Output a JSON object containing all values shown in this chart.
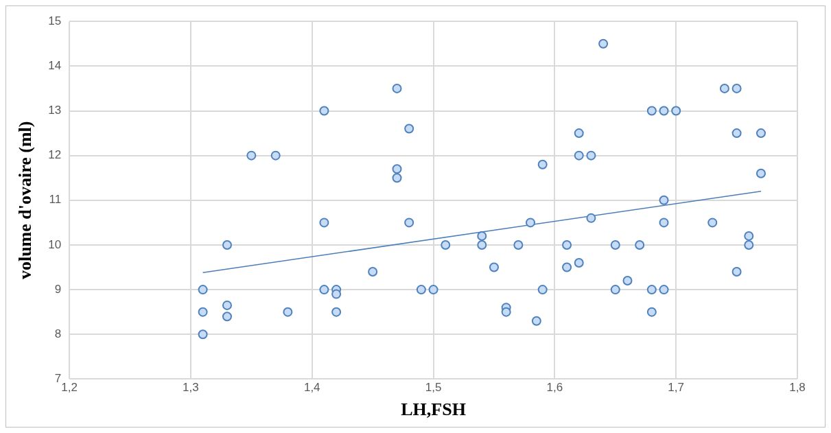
{
  "chart_data": {
    "type": "scatter",
    "xlabel": "LH,FSH",
    "ylabel": "volume d'ovaire (ml)",
    "xlim": [
      1.2,
      1.8
    ],
    "xticks": [
      {
        "value": 1.2,
        "label": "1,2"
      },
      {
        "value": 1.3,
        "label": "1,3"
      },
      {
        "value": 1.4,
        "label": "1,4"
      },
      {
        "value": 1.5,
        "label": "1,5"
      },
      {
        "value": 1.6,
        "label": "1,6"
      },
      {
        "value": 1.7,
        "label": "1,7"
      },
      {
        "value": 1.8,
        "label": "1,8"
      }
    ],
    "ylim": [
      7,
      15
    ],
    "yticks": [
      7,
      8,
      9,
      10,
      11,
      12,
      13,
      14,
      15
    ],
    "grid": true,
    "legend": false,
    "marker": "circle",
    "series": [
      {
        "type": "scatter",
        "color": "#4f81bd",
        "x": [
          1.31,
          1.31,
          1.31,
          1.33,
          1.33,
          1.33,
          1.35,
          1.37,
          1.38,
          1.41,
          1.41,
          1.41,
          1.42,
          1.42,
          1.42,
          1.45,
          1.47,
          1.47,
          1.47,
          1.48,
          1.48,
          1.49,
          1.5,
          1.51,
          1.54,
          1.54,
          1.55,
          1.56,
          1.56,
          1.57,
          1.58,
          1.585,
          1.59,
          1.59,
          1.61,
          1.61,
          1.62,
          1.62,
          1.62,
          1.63,
          1.63,
          1.64,
          1.65,
          1.65,
          1.66,
          1.67,
          1.68,
          1.68,
          1.68,
          1.69,
          1.69,
          1.69,
          1.69,
          1.7,
          1.73,
          1.74,
          1.75,
          1.75,
          1.75,
          1.76,
          1.76,
          1.77,
          1.77
        ],
        "values": [
          9,
          8.5,
          8,
          10,
          8.65,
          8.4,
          12,
          12,
          8.5,
          13,
          10.5,
          9,
          9,
          8.9,
          8.5,
          9.4,
          13.5,
          11.7,
          11.5,
          12.6,
          10.5,
          9,
          9,
          10,
          10.2,
          10,
          9.5,
          8.6,
          8.5,
          10,
          10.5,
          8.3,
          11.8,
          9,
          10,
          9.5,
          12.5,
          12,
          9.6,
          12,
          10.6,
          14.5,
          10,
          9,
          9.2,
          10,
          13,
          9,
          8.5,
          13,
          11,
          10.5,
          9,
          13,
          10.5,
          13.5,
          13.5,
          12.5,
          9.4,
          10.2,
          10,
          12.5,
          11.6
        ]
      },
      {
        "type": "line",
        "color": "#4a7ebb",
        "x": [
          1.31,
          1.77
        ],
        "values": [
          9.38,
          11.2
        ],
        "line_style": "solid",
        "marker": "none"
      }
    ]
  }
}
